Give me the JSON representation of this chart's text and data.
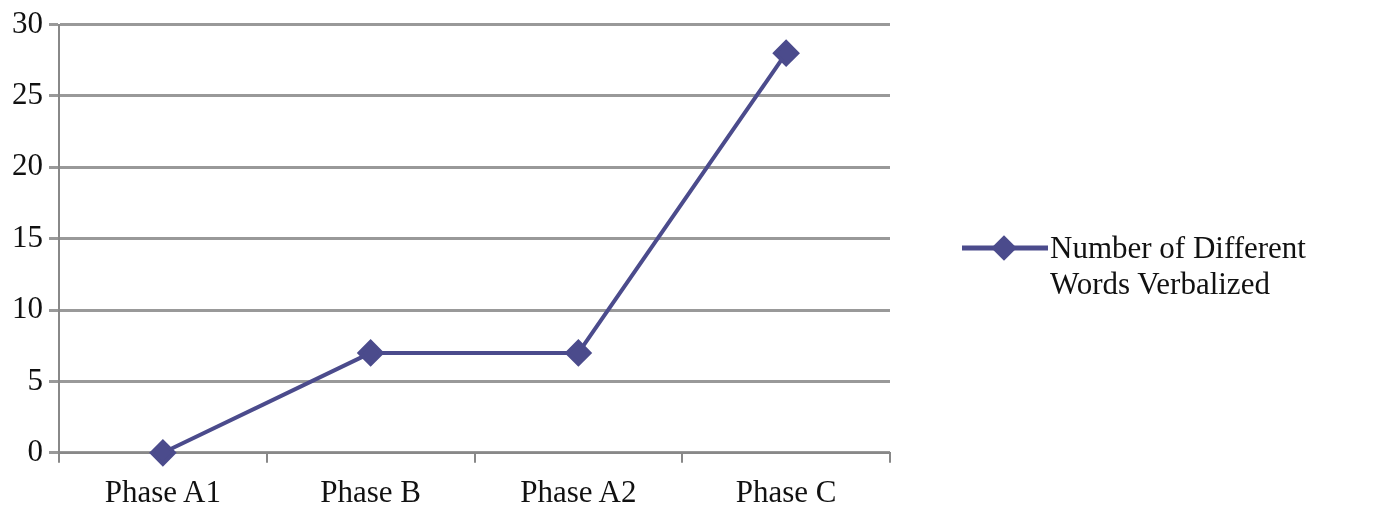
{
  "chart_data": {
    "type": "line",
    "categories": [
      "Phase A1",
      "Phase B",
      "Phase A2",
      "Phase C"
    ],
    "series": [
      {
        "name": "Number of Different Words Verbalized",
        "color": "#4b4b8c",
        "values": [
          0,
          7,
          7,
          28
        ]
      }
    ],
    "ylim": [
      0,
      30
    ],
    "yticks": [
      0,
      5,
      10,
      15,
      20,
      25,
      30
    ],
    "grid": "y",
    "legend": "right",
    "marker": "diamond",
    "line_style": "solid"
  }
}
